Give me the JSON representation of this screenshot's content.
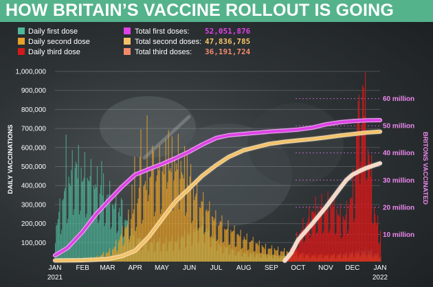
{
  "header": {
    "title": "HOW BRITAIN’S VACCINE ROLLOUT IS GOING"
  },
  "legend": {
    "bars": [
      {
        "label": "Daily first dose",
        "color": "#4fb79a"
      },
      {
        "label": "Daily second dose",
        "color": "#e8a12a"
      },
      {
        "label": "Daily third dose",
        "color": "#d31a1a"
      }
    ],
    "totals": [
      {
        "label": "Total first doses:",
        "value": "52,051,876",
        "color": "#e040e8"
      },
      {
        "label": "Total second doses:",
        "value": "47,836,785",
        "color": "#f4c266"
      },
      {
        "label": "Total third doses:",
        "value": "36,191,724",
        "color": "#f28a6a"
      }
    ]
  },
  "chart_data": {
    "type": "bar",
    "title": "HOW BRITAIN’S VACCINE ROLLOUT IS GOING",
    "ylabel": "DAILY VACCINATIONS",
    "y2label": "BRITONS VACCINATED",
    "ylim": [
      0,
      1000000
    ],
    "y2lim": [
      0,
      70000000
    ],
    "yticks": [
      "100,000",
      "200,000",
      "300,000",
      "400,000",
      "500,000",
      "600,000",
      "700,000",
      "800,000",
      "900,000",
      "1,000,000"
    ],
    "y2ticks": [
      "10 million",
      "20 million",
      "30 million",
      "40 million",
      "50 million",
      "60 million"
    ],
    "x_labels": [
      "JAN\n2021",
      "FEB",
      "MAR",
      "APR",
      "MAY",
      "JUN",
      "JUL",
      "AUG",
      "SEP",
      "OCT",
      "NOV",
      "DEC",
      "JAN\n2022"
    ],
    "grid": true,
    "bar_series": [
      {
        "name": "Daily first dose",
        "color": "#4fb79a",
        "keyframes": [
          [
            0,
            160000
          ],
          [
            10,
            330000
          ],
          [
            22,
            470000
          ],
          [
            32,
            430000
          ],
          [
            45,
            380000
          ],
          [
            60,
            320000
          ],
          [
            75,
            240000
          ],
          [
            90,
            120000
          ],
          [
            110,
            90000
          ],
          [
            135,
            100000
          ],
          [
            150,
            140000
          ],
          [
            165,
            180000
          ],
          [
            185,
            80000
          ],
          [
            210,
            45000
          ],
          [
            250,
            30000
          ],
          [
            300,
            25000
          ],
          [
            330,
            40000
          ],
          [
            350,
            60000
          ],
          [
            365,
            30000
          ]
        ]
      },
      {
        "name": "Daily second dose",
        "color": "#e8a12a",
        "keyframes": [
          [
            0,
            5000
          ],
          [
            25,
            15000
          ],
          [
            45,
            20000
          ],
          [
            65,
            60000
          ],
          [
            80,
            180000
          ],
          [
            95,
            350000
          ],
          [
            110,
            430000
          ],
          [
            125,
            480000
          ],
          [
            140,
            500000
          ],
          [
            160,
            300000
          ],
          [
            180,
            200000
          ],
          [
            205,
            130000
          ],
          [
            235,
            70000
          ],
          [
            280,
            35000
          ],
          [
            320,
            30000
          ],
          [
            345,
            40000
          ],
          [
            365,
            25000
          ]
        ]
      },
      {
        "name": "Daily third dose",
        "color": "#d31a1a",
        "keyframes": [
          [
            0,
            0
          ],
          [
            255,
            0
          ],
          [
            260,
            20000
          ],
          [
            275,
            150000
          ],
          [
            290,
            250000
          ],
          [
            310,
            280000
          ],
          [
            325,
            200000
          ],
          [
            335,
            380000
          ],
          [
            343,
            820000
          ],
          [
            348,
            900000
          ],
          [
            353,
            500000
          ],
          [
            360,
            200000
          ],
          [
            365,
            150000
          ]
        ]
      }
    ],
    "line_series": [
      {
        "name": "Total first doses",
        "color": "#e040e8",
        "points": [
          [
            0,
            2300000
          ],
          [
            14,
            5000000
          ],
          [
            31,
            11000000
          ],
          [
            45,
            17000000
          ],
          [
            59,
            22000000
          ],
          [
            75,
            27500000
          ],
          [
            90,
            32000000
          ],
          [
            105,
            34000000
          ],
          [
            121,
            36000000
          ],
          [
            135,
            38000000
          ],
          [
            151,
            40500000
          ],
          [
            165,
            43000000
          ],
          [
            181,
            45500000
          ],
          [
            195,
            46500000
          ],
          [
            212,
            47000000
          ],
          [
            240,
            47800000
          ],
          [
            258,
            48200000
          ],
          [
            273,
            48600000
          ],
          [
            289,
            49300000
          ],
          [
            304,
            50500000
          ],
          [
            320,
            51300000
          ],
          [
            334,
            51700000
          ],
          [
            350,
            52000000
          ],
          [
            365,
            52051876
          ]
        ]
      },
      {
        "name": "Total second doses",
        "color": "#f4c266",
        "points": [
          [
            0,
            400000
          ],
          [
            31,
            500000
          ],
          [
            59,
            900000
          ],
          [
            75,
            2000000
          ],
          [
            90,
            4000000
          ],
          [
            105,
            9000000
          ],
          [
            121,
            16000000
          ],
          [
            135,
            22000000
          ],
          [
            151,
            27000000
          ],
          [
            165,
            31500000
          ],
          [
            181,
            35500000
          ],
          [
            195,
            38500000
          ],
          [
            212,
            41000000
          ],
          [
            240,
            43300000
          ],
          [
            258,
            44100000
          ],
          [
            273,
            44600000
          ],
          [
            289,
            45100000
          ],
          [
            304,
            45700000
          ],
          [
            320,
            46400000
          ],
          [
            334,
            46900000
          ],
          [
            350,
            47500000
          ],
          [
            365,
            47836785
          ]
        ]
      },
      {
        "name": "Total third doses",
        "color": "#f7d9c6",
        "points": [
          [
            258,
            300000
          ],
          [
            265,
            3000000
          ],
          [
            273,
            8000000
          ],
          [
            289,
            14000000
          ],
          [
            304,
            20000000
          ],
          [
            320,
            27000000
          ],
          [
            327,
            30000000
          ],
          [
            334,
            32000000
          ],
          [
            343,
            33500000
          ],
          [
            350,
            34500000
          ],
          [
            365,
            36191724
          ]
        ]
      }
    ]
  }
}
